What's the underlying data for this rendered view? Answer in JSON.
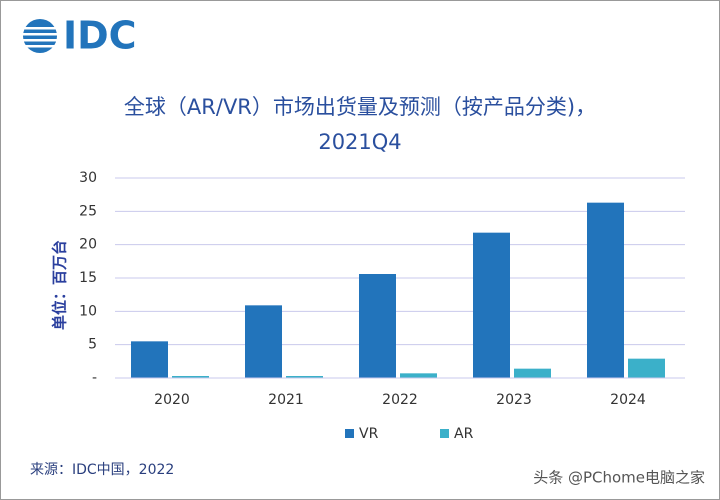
{
  "logo": "IDC",
  "chart_data": {
    "type": "bar",
    "title_lines": [
      "全球（AR/VR）市场出货量及预测（按产品分类)，",
      "2021Q4"
    ],
    "y_label": "单位：百万台",
    "categories": [
      "2020",
      "2021",
      "2022",
      "2023",
      "2024"
    ],
    "series": [
      {
        "name": "VR",
        "color": "#2274bb",
        "values": [
          5.5,
          10.9,
          15.6,
          21.8,
          26.3
        ]
      },
      {
        "name": "AR",
        "color": "#3bb0c9",
        "values": [
          0.3,
          0.3,
          0.7,
          1.4,
          2.9
        ]
      }
    ],
    "ylim": [
      0,
      30
    ],
    "yticks": [
      {
        "value": 0,
        "label": "-"
      },
      5,
      10,
      15,
      20,
      25,
      30
    ],
    "grid": true,
    "legend": "bottom"
  },
  "source": "来源：IDC中国，2022",
  "watermark": "头条 @PChome电脑之家"
}
